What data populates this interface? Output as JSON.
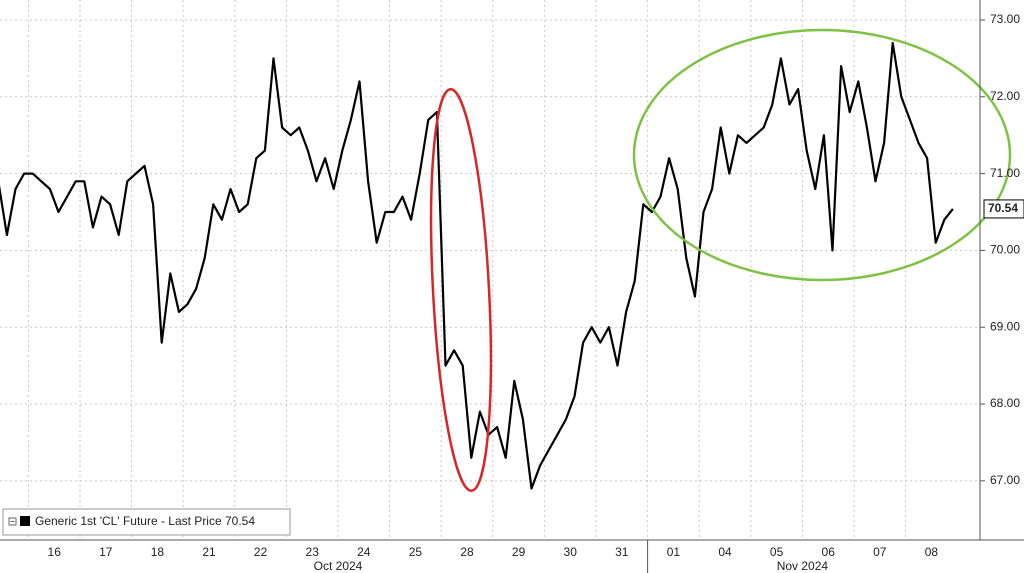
{
  "chart_data": {
    "type": "line",
    "categories": [
      null,
      "16",
      "17",
      "18",
      "21",
      "22",
      "23",
      "24",
      "25",
      "28",
      "29",
      "30",
      "31",
      "01",
      "04",
      "05",
      "06",
      "07",
      "08"
    ],
    "months": [
      "Oct 2024",
      "Nov 2024"
    ],
    "series": [
      {
        "name": "Generic 1st 'CL' Future - Last Price",
        "color": "#000000",
        "values": [
          [
            null,
            null,
            70.9,
            70.2,
            70.8,
            71.0
          ],
          [
            71.0,
            70.9,
            70.8,
            70.5,
            70.7,
            70.9
          ],
          [
            70.9,
            70.3,
            70.7,
            70.6,
            70.2,
            70.9
          ],
          [
            71.0,
            71.1,
            70.6,
            68.8,
            69.7,
            69.2
          ],
          [
            69.3,
            69.5,
            69.9,
            70.6,
            70.4,
            70.8
          ],
          [
            70.5,
            70.6,
            71.2,
            71.3,
            72.5,
            71.6
          ],
          [
            71.5,
            71.6,
            71.3,
            70.9,
            71.2,
            70.8
          ],
          [
            71.3,
            71.7,
            72.2,
            70.9,
            70.1,
            70.5
          ],
          [
            70.5,
            70.7,
            70.4,
            71.0,
            71.7,
            71.8
          ],
          [
            68.5,
            68.7,
            68.5,
            67.3,
            67.9,
            67.6
          ],
          [
            67.7,
            67.3,
            68.3,
            67.8,
            66.9,
            67.2
          ],
          [
            67.4,
            67.6,
            67.8,
            68.1,
            68.8,
            69.0
          ],
          [
            68.8,
            69.0,
            68.5,
            69.2,
            69.6,
            70.6
          ],
          [
            70.5,
            70.7,
            71.2,
            70.8,
            69.9,
            69.4
          ],
          [
            70.5,
            70.8,
            71.6,
            71.0,
            71.5,
            71.4
          ],
          [
            71.5,
            71.6,
            71.9,
            72.5,
            71.9,
            72.1
          ],
          [
            71.3,
            70.8,
            71.5,
            70.0,
            72.4,
            71.8
          ],
          [
            72.2,
            71.6,
            70.9,
            71.4,
            72.7,
            72.0
          ],
          [
            71.7,
            71.4,
            71.2,
            70.1,
            70.4,
            70.54
          ]
        ]
      }
    ],
    "ylim": [
      66.23,
      73.26
    ],
    "yticks": [
      {
        "value": 67,
        "label": "67.00"
      },
      {
        "value": 68,
        "label": "68.00"
      },
      {
        "value": 69,
        "label": "69.00"
      },
      {
        "value": 70,
        "label": "70.00"
      },
      {
        "value": 71,
        "label": "71.00"
      },
      {
        "value": 72,
        "label": "72.00"
      },
      {
        "value": 73,
        "label": "73.00"
      }
    ],
    "grid": true
  }
}
